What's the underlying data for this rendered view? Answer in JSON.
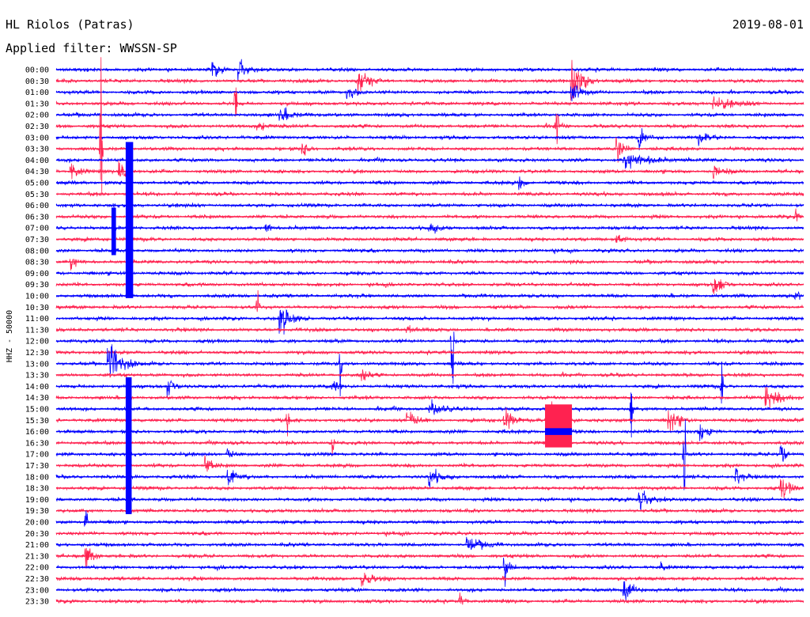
{
  "header": {
    "station": "HL Riolos (Patras)",
    "date": "2019-08-01",
    "filter": "Applied filter: WWSSN-SP"
  },
  "chart_data": {
    "type": "line",
    "title": "HL Riolos (Patras)",
    "subtitle": "Applied filter: WWSSN-SP",
    "ylabel": "HHZ - 50000",
    "xlabel": "",
    "grid": false,
    "trace_colors": [
      "#0000ff",
      "#ff2250"
    ],
    "row_labels": [
      "00:00",
      "00:30",
      "01:00",
      "01:30",
      "02:00",
      "02:30",
      "03:00",
      "03:30",
      "04:00",
      "04:30",
      "05:00",
      "05:30",
      "06:00",
      "06:30",
      "07:00",
      "07:30",
      "08:00",
      "08:30",
      "09:00",
      "09:30",
      "10:00",
      "10:30",
      "11:00",
      "11:30",
      "12:00",
      "12:30",
      "13:00",
      "13:30",
      "14:00",
      "14:30",
      "15:00",
      "15:30",
      "16:00",
      "16:30",
      "17:00",
      "17:30",
      "18:00",
      "18:30",
      "19:00",
      "19:30",
      "20:00",
      "20:30",
      "21:00",
      "21:30",
      "22:00",
      "22:30",
      "23:00",
      "23:30"
    ],
    "events": [
      {
        "row": 0,
        "t": 0.21,
        "amp": 9,
        "dur": 0.02
      },
      {
        "row": 0,
        "t": 0.245,
        "amp": 12,
        "dur": 0.03
      },
      {
        "row": 1,
        "t": 0.405,
        "amp": 22,
        "dur": 0.03
      },
      {
        "row": 1,
        "t": 0.69,
        "amp": 22,
        "dur": 0.04
      },
      {
        "row": 2,
        "t": 0.39,
        "amp": 7,
        "dur": 0.03
      },
      {
        "row": 2,
        "t": 0.69,
        "amp": 12,
        "dur": 0.03
      },
      {
        "row": 3,
        "t": 0.88,
        "amp": 7,
        "dur": 0.06
      },
      {
        "row": 4,
        "t": 0.3,
        "amp": 7,
        "dur": 0.05
      },
      {
        "row": 5,
        "t": 0.27,
        "amp": 5,
        "dur": 0.04
      },
      {
        "row": 6,
        "t": 0.78,
        "amp": 9,
        "dur": 0.02
      },
      {
        "row": 6,
        "t": 0.86,
        "amp": 5,
        "dur": 0.04
      },
      {
        "row": 7,
        "t": 0.33,
        "amp": 8,
        "dur": 0.02
      },
      {
        "row": 7,
        "t": 0.75,
        "amp": 14,
        "dur": 0.02
      },
      {
        "row": 8,
        "t": 0.76,
        "amp": 9,
        "dur": 0.09
      },
      {
        "row": 9,
        "t": 0.02,
        "amp": 8,
        "dur": 0.03
      },
      {
        "row": 9,
        "t": 0.085,
        "amp": 12,
        "dur": 0.02
      },
      {
        "row": 9,
        "t": 0.88,
        "amp": 7,
        "dur": 0.03
      },
      {
        "row": 10,
        "t": 0.62,
        "amp": 7,
        "dur": 0.02
      },
      {
        "row": 13,
        "t": 0.99,
        "amp": 7,
        "dur": 0.01
      },
      {
        "row": 14,
        "t": 0.28,
        "amp": 8,
        "dur": 0.02
      },
      {
        "row": 14,
        "t": 0.5,
        "amp": 6,
        "dur": 0.03
      },
      {
        "row": 15,
        "t": 0.75,
        "amp": 7,
        "dur": 0.02
      },
      {
        "row": 17,
        "t": 0.02,
        "amp": 8,
        "dur": 0.02
      },
      {
        "row": 19,
        "t": 0.88,
        "amp": 10,
        "dur": 0.03
      },
      {
        "row": 20,
        "t": 0.99,
        "amp": 6,
        "dur": 0.02
      },
      {
        "row": 22,
        "t": 0.3,
        "amp": 16,
        "dur": 0.04
      },
      {
        "row": 23,
        "t": 0.47,
        "amp": 5,
        "dur": 0.03
      },
      {
        "row": 26,
        "t": 0.07,
        "amp": 25,
        "dur": 0.04
      },
      {
        "row": 27,
        "t": 0.41,
        "amp": 8,
        "dur": 0.02
      },
      {
        "row": 28,
        "t": 0.15,
        "amp": 10,
        "dur": 0.02
      },
      {
        "row": 28,
        "t": 0.37,
        "amp": 10,
        "dur": 0.02
      },
      {
        "row": 29,
        "t": 0.95,
        "amp": 12,
        "dur": 0.05
      },
      {
        "row": 30,
        "t": 0.5,
        "amp": 7,
        "dur": 0.05
      },
      {
        "row": 31,
        "t": 0.47,
        "amp": 12,
        "dur": 0.03
      },
      {
        "row": 31,
        "t": 0.6,
        "amp": 12,
        "dur": 0.03
      },
      {
        "row": 31,
        "t": 0.66,
        "amp": 30,
        "dur": 0.04
      },
      {
        "row": 31,
        "t": 0.82,
        "amp": 16,
        "dur": 0.03
      },
      {
        "row": 32,
        "t": 0.86,
        "amp": 10,
        "dur": 0.03
      },
      {
        "row": 34,
        "t": 0.23,
        "amp": 6,
        "dur": 0.02
      },
      {
        "row": 34,
        "t": 0.97,
        "amp": 12,
        "dur": 0.02
      },
      {
        "row": 35,
        "t": 0.2,
        "amp": 8,
        "dur": 0.02
      },
      {
        "row": 36,
        "t": 0.23,
        "amp": 10,
        "dur": 0.03
      },
      {
        "row": 36,
        "t": 0.5,
        "amp": 9,
        "dur": 0.04
      },
      {
        "row": 36,
        "t": 0.91,
        "amp": 10,
        "dur": 0.02
      },
      {
        "row": 37,
        "t": 0.97,
        "amp": 12,
        "dur": 0.03
      },
      {
        "row": 38,
        "t": 0.78,
        "amp": 12,
        "dur": 0.04
      },
      {
        "row": 42,
        "t": 0.55,
        "amp": 7,
        "dur": 0.05
      },
      {
        "row": 43,
        "t": 0.04,
        "amp": 14,
        "dur": 0.02
      },
      {
        "row": 44,
        "t": 0.6,
        "amp": 14,
        "dur": 0.02
      },
      {
        "row": 44,
        "t": 0.81,
        "amp": 5,
        "dur": 0.01
      },
      {
        "row": 45,
        "t": 0.41,
        "amp": 7,
        "dur": 0.05
      },
      {
        "row": 46,
        "t": 0.76,
        "amp": 14,
        "dur": 0.03
      },
      {
        "row": 47,
        "t": 0.54,
        "amp": 6,
        "dur": 0.02
      }
    ],
    "spikes": [
      {
        "row": 3,
        "t": 0.24,
        "amp": 32
      },
      {
        "row": 5,
        "t": 0.67,
        "amp": 44
      },
      {
        "row": 7,
        "t": 0.06,
        "amp": 70
      },
      {
        "row": 21,
        "t": 0.27,
        "amp": 18
      },
      {
        "row": 24,
        "t": 0.53,
        "amp": 70
      },
      {
        "row": 26,
        "t": 0.38,
        "amp": 40
      },
      {
        "row": 28,
        "t": 0.89,
        "amp": 30
      },
      {
        "row": 30,
        "t": 0.77,
        "amp": 50
      },
      {
        "row": 31,
        "t": 0.31,
        "amp": 25
      },
      {
        "row": 33,
        "t": 0.37,
        "amp": 15
      },
      {
        "row": 34,
        "t": 0.84,
        "amp": 60
      },
      {
        "row": 40,
        "t": 0.04,
        "amp": 20
      }
    ],
    "saturated_blocks": [
      {
        "row_start": 6.4,
        "row_end": 20.2,
        "t_start": 0.093,
        "t_end": 0.103,
        "color": "#0000ff"
      },
      {
        "row_start": 27.2,
        "row_end": 39.3,
        "t_start": 0.093,
        "t_end": 0.101,
        "color": "#0000ff"
      },
      {
        "row_start": 29.6,
        "row_end": 33.4,
        "t_start": 0.654,
        "t_end": 0.69,
        "color": "#ff2250"
      },
      {
        "row_start": 31.7,
        "row_end": 32.3,
        "t_start": 0.654,
        "t_end": 0.69,
        "color": "#0000ff"
      },
      {
        "row_start": 12.2,
        "row_end": 16.4,
        "t_start": 0.074,
        "t_end": 0.08,
        "color": "#0000ff"
      }
    ]
  }
}
